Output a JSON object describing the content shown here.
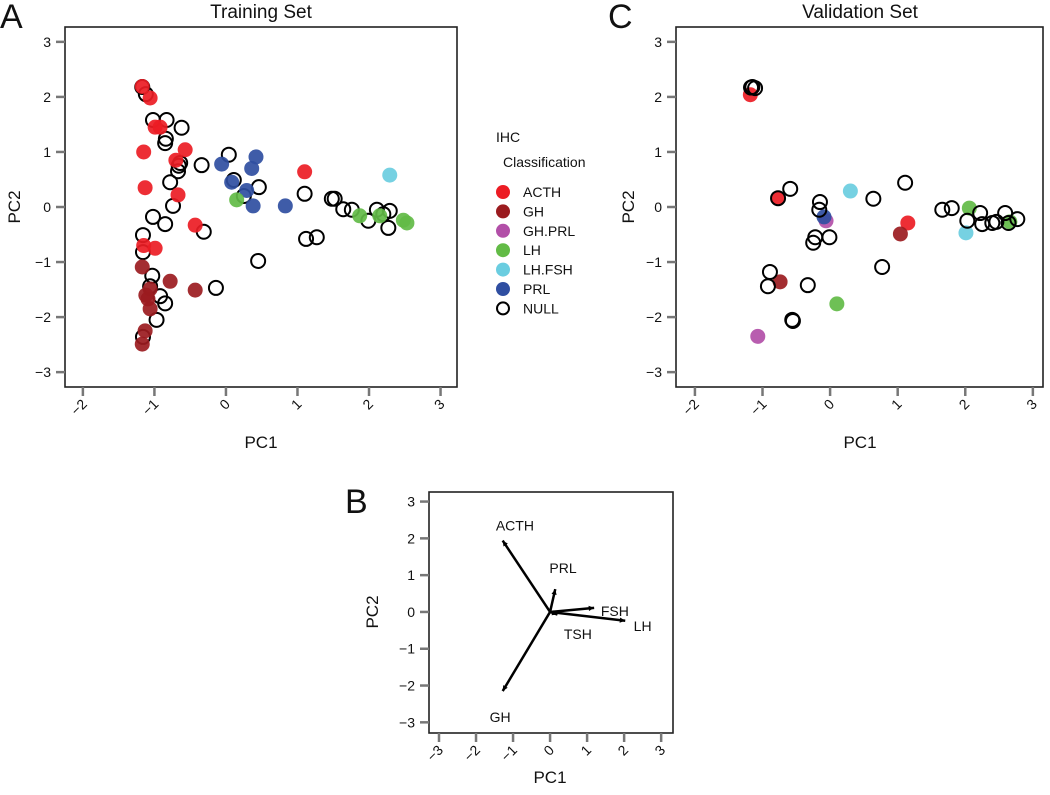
{
  "chart_data": [
    {
      "panel_label": "A",
      "type": "scatter",
      "title": "Training Set",
      "xlabel": "PC1",
      "ylabel": "PC2",
      "xlim": [
        -2.25,
        3.23
      ],
      "ylim": [
        -3.27,
        3.27
      ],
      "xticks": [
        -2,
        -1,
        0,
        1,
        2,
        3
      ],
      "yticks": [
        -3,
        -2,
        -1,
        0,
        1,
        2,
        3
      ],
      "grid": false,
      "series": [
        {
          "name": "NULL",
          "points": [
            [
              -1.17,
              2.18
            ],
            [
              -1.12,
              2.05
            ],
            [
              -1.02,
              1.58
            ],
            [
              -0.83,
              1.58
            ],
            [
              -0.62,
              1.44
            ],
            [
              -0.84,
              1.24
            ],
            [
              -0.85,
              1.16
            ],
            [
              -0.64,
              0.8
            ],
            [
              -0.66,
              0.75
            ],
            [
              -0.67,
              0.65
            ],
            [
              -0.34,
              0.76
            ],
            [
              -0.78,
              0.45
            ],
            [
              -0.74,
              0.02
            ],
            [
              -1.02,
              -0.18
            ],
            [
              -0.85,
              -0.31
            ],
            [
              -1.16,
              -0.51
            ],
            [
              -0.31,
              -0.45
            ],
            [
              -1.16,
              -0.82
            ],
            [
              -1.03,
              -1.25
            ],
            [
              -1.06,
              -1.44
            ],
            [
              -0.92,
              -1.62
            ],
            [
              -0.85,
              -1.75
            ],
            [
              -0.97,
              -2.05
            ],
            [
              -1.16,
              -2.36
            ],
            [
              -0.14,
              -1.47
            ],
            [
              0.45,
              -0.98
            ],
            [
              0.04,
              0.95
            ],
            [
              0.11,
              0.49
            ],
            [
              0.25,
              0.2
            ],
            [
              0.46,
              0.36
            ],
            [
              1.1,
              0.24
            ],
            [
              1.12,
              -0.58
            ],
            [
              1.27,
              -0.55
            ],
            [
              1.48,
              0.15
            ],
            [
              1.52,
              0.15
            ],
            [
              1.64,
              -0.04
            ],
            [
              1.76,
              -0.05
            ],
            [
              1.99,
              -0.25
            ],
            [
              2.11,
              -0.05
            ],
            [
              2.2,
              -0.13
            ],
            [
              2.29,
              -0.07
            ],
            [
              2.27,
              -0.38
            ]
          ]
        },
        {
          "name": "ACTH",
          "points": [
            [
              -1.17,
              2.19
            ],
            [
              -1.06,
              1.98
            ],
            [
              -0.99,
              1.45
            ],
            [
              -0.92,
              1.45
            ],
            [
              -1.15,
              1.0
            ],
            [
              -0.57,
              1.04
            ],
            [
              -0.7,
              0.85
            ],
            [
              -1.13,
              0.35
            ],
            [
              -0.67,
              0.22
            ],
            [
              -0.43,
              -0.33
            ],
            [
              1.1,
              0.64
            ],
            [
              -0.99,
              -0.75
            ],
            [
              -1.15,
              -0.7
            ]
          ]
        },
        {
          "name": "GH",
          "points": [
            [
              -1.17,
              -1.09
            ],
            [
              -1.06,
              -1.49
            ],
            [
              -0.78,
              -1.35
            ],
            [
              -0.43,
              -1.51
            ],
            [
              -1.09,
              -1.67
            ],
            [
              -1.06,
              -1.85
            ],
            [
              -1.13,
              -2.25
            ],
            [
              -1.17,
              -2.49
            ],
            [
              -1.12,
              -1.6
            ]
          ]
        },
        {
          "name": "PRL",
          "points": [
            [
              -0.06,
              0.78
            ],
            [
              0.42,
              0.91
            ],
            [
              0.36,
              0.7
            ],
            [
              0.08,
              0.45
            ],
            [
              0.29,
              0.3
            ],
            [
              0.38,
              0.02
            ],
            [
              0.83,
              0.02
            ]
          ]
        },
        {
          "name": "LH",
          "points": [
            [
              0.15,
              0.13
            ],
            [
              1.87,
              -0.16
            ],
            [
              2.15,
              -0.16
            ],
            [
              2.48,
              -0.24
            ],
            [
              2.53,
              -0.29
            ]
          ]
        },
        {
          "name": "LH.FSH",
          "points": [
            [
              2.29,
              0.58
            ]
          ]
        }
      ]
    },
    {
      "panel_label": "C",
      "type": "scatter",
      "title": "Validation Set",
      "xlabel": "PC1",
      "ylabel": "PC2",
      "xlim": [
        -2.28,
        3.15
      ],
      "ylim": [
        -3.27,
        3.27
      ],
      "xticks": [
        -2,
        -1,
        0,
        1,
        2,
        3
      ],
      "yticks": [
        -3,
        -2,
        -1,
        0,
        1,
        2,
        3
      ],
      "grid": false,
      "series": [
        {
          "name": "ACTH",
          "points": [
            [
              -1.18,
              2.04
            ],
            [
              -0.77,
              0.16
            ],
            [
              1.15,
              -0.29
            ]
          ]
        },
        {
          "name": "GH",
          "points": [
            [
              1.04,
              -0.49
            ],
            [
              -0.74,
              -1.36
            ]
          ]
        },
        {
          "name": "GH.PRL",
          "points": [
            [
              -0.06,
              -0.25
            ],
            [
              -1.07,
              -2.35
            ]
          ]
        },
        {
          "name": "PRL",
          "points": [
            [
              -0.09,
              -0.18
            ]
          ]
        },
        {
          "name": "LH",
          "points": [
            [
              0.1,
              -1.76
            ],
            [
              2.06,
              -0.02
            ],
            [
              2.66,
              -0.27
            ]
          ]
        },
        {
          "name": "LH.FSH",
          "points": [
            [
              0.3,
              0.29
            ],
            [
              2.01,
              -0.47
            ]
          ]
        },
        {
          "name": "NULL",
          "points": [
            [
              -1.15,
              2.18
            ],
            [
              -1.11,
              2.16
            ],
            [
              -1.17,
              2.17
            ],
            [
              -0.77,
              0.16
            ],
            [
              -0.59,
              0.33
            ],
            [
              0.64,
              0.15
            ],
            [
              1.11,
              0.44
            ],
            [
              -0.15,
              0.09
            ],
            [
              -0.16,
              -0.05
            ],
            [
              -0.22,
              -0.55
            ],
            [
              -0.25,
              -0.65
            ],
            [
              -0.01,
              -0.55
            ],
            [
              0.77,
              -1.09
            ],
            [
              -0.89,
              -1.18
            ],
            [
              -0.92,
              -1.44
            ],
            [
              -0.33,
              -1.42
            ],
            [
              -0.56,
              -2.05
            ],
            [
              -0.55,
              -2.07
            ],
            [
              1.66,
              -0.05
            ],
            [
              1.8,
              -0.02
            ],
            [
              2.03,
              -0.25
            ],
            [
              2.22,
              -0.11
            ],
            [
              2.25,
              -0.31
            ],
            [
              2.4,
              -0.29
            ],
            [
              2.46,
              -0.27
            ],
            [
              2.59,
              -0.11
            ],
            [
              2.77,
              -0.22
            ],
            [
              2.64,
              -0.29
            ]
          ]
        }
      ]
    },
    {
      "panel_label": "B",
      "type": "biplot",
      "title": "",
      "xlabel": "PC1",
      "ylabel": "PC2",
      "xlim": [
        -3.27,
        3.32
      ],
      "ylim": [
        -3.29,
        3.26
      ],
      "xticks": [
        -3,
        -2,
        -1,
        0,
        1,
        2,
        3
      ],
      "yticks": [
        -3,
        -2,
        -1,
        0,
        1,
        2,
        3
      ],
      "grid": false,
      "loadings": [
        {
          "name": "ACTH",
          "x": -1.28,
          "y": 1.94,
          "label_at": [
            -0.95,
            2.35
          ]
        },
        {
          "name": "PRL",
          "x": 0.14,
          "y": 0.62,
          "label_at": [
            0.35,
            1.2
          ]
        },
        {
          "name": "FSH",
          "x": 1.19,
          "y": 0.11,
          "label_at": [
            1.75,
            0.03
          ]
        },
        {
          "name": "LH",
          "x": 2.03,
          "y": -0.24,
          "label_at": [
            2.5,
            -0.38
          ]
        },
        {
          "name": "TSH",
          "x": 0.2,
          "y": -0.07,
          "label_at": [
            0.75,
            -0.6
          ]
        },
        {
          "name": "GH",
          "x": -1.28,
          "y": -2.15,
          "label_at": [
            -1.35,
            -2.85
          ]
        }
      ]
    }
  ],
  "legend": {
    "title_line1": "IHC",
    "title_line2": "Classification",
    "placement": "between panels A and C",
    "items": [
      {
        "label": "ACTH",
        "color": "#ec1c24",
        "filled": true
      },
      {
        "label": "GH",
        "color": "#9b1b1f",
        "filled": true
      },
      {
        "label": "GH.PRL",
        "color": "#b24fa8",
        "filled": true
      },
      {
        "label": "LH",
        "color": "#62bb46",
        "filled": true
      },
      {
        "label": "LH.FSH",
        "color": "#6acde0",
        "filled": true
      },
      {
        "label": "PRL",
        "color": "#2f4ea1",
        "filled": true
      },
      {
        "label": "NULL",
        "color": "#000000",
        "filled": false
      }
    ]
  }
}
